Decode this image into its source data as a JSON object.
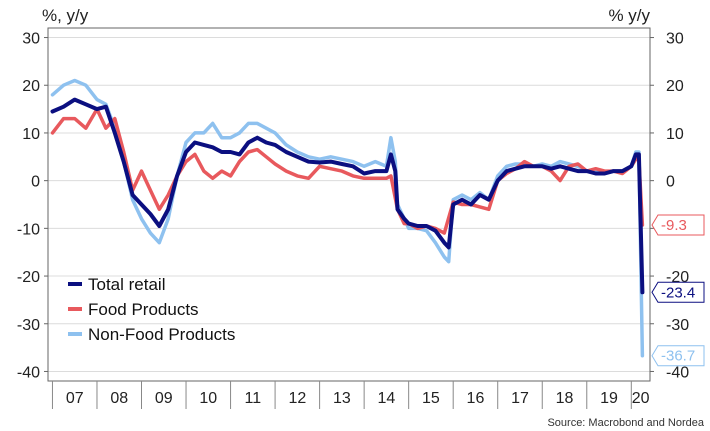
{
  "chart_data": {
    "type": "line",
    "ylabel_left": "%, y/y",
    "ylabel_right": "% y/y",
    "ylim": [
      -42,
      32
    ],
    "yticks": [
      -40,
      -30,
      -20,
      -10,
      0,
      10,
      20,
      30
    ],
    "xlim": [
      2006.9,
      2020.42
    ],
    "x_year_labels": [
      "07",
      "08",
      "09",
      "10",
      "11",
      "12",
      "13",
      "14",
      "15",
      "16",
      "17",
      "18",
      "19",
      "20"
    ],
    "grid": true,
    "legend_position": "bottom-left",
    "source": "Source: Macrobond and Nordea",
    "series": [
      {
        "name": "Total retail",
        "color": "#0b0f80",
        "end_label": "-23.4",
        "x": [
          2007.0,
          2007.25,
          2007.5,
          2007.75,
          2008.0,
          2008.2,
          2008.4,
          2008.6,
          2008.8,
          2009.0,
          2009.2,
          2009.4,
          2009.6,
          2009.8,
          2010.0,
          2010.2,
          2010.4,
          2010.6,
          2010.8,
          2011.0,
          2011.2,
          2011.4,
          2011.6,
          2011.8,
          2012.0,
          2012.25,
          2012.5,
          2012.75,
          2013.0,
          2013.25,
          2013.5,
          2013.75,
          2014.0,
          2014.25,
          2014.5,
          2014.6,
          2014.7,
          2014.75,
          2014.9,
          2015.0,
          2015.2,
          2015.4,
          2015.6,
          2015.8,
          2015.9,
          2016.0,
          2016.2,
          2016.4,
          2016.6,
          2016.8,
          2017.0,
          2017.2,
          2017.4,
          2017.6,
          2017.8,
          2018.0,
          2018.2,
          2018.4,
          2018.6,
          2018.8,
          2019.0,
          2019.2,
          2019.4,
          2019.6,
          2019.8,
          2020.0,
          2020.1,
          2020.17,
          2020.25
        ],
        "y": [
          14.5,
          15.5,
          17,
          16,
          15,
          15.5,
          10,
          4,
          -3,
          -5,
          -7,
          -9.5,
          -6,
          1,
          6,
          8,
          7.5,
          7,
          6,
          6,
          5.5,
          8,
          9,
          8,
          7.5,
          6,
          5,
          4,
          3.8,
          4,
          3.5,
          3,
          1.5,
          2,
          2,
          5.5,
          2,
          -6,
          -8,
          -9,
          -9.5,
          -9.5,
          -10.5,
          -13,
          -14,
          -5,
          -4,
          -5,
          -3,
          -4,
          0,
          2,
          2.5,
          3,
          3,
          3,
          2.5,
          3,
          2.5,
          2,
          2,
          1.5,
          1.5,
          2,
          2,
          3,
          5.5,
          5.5,
          -23.4
        ]
      },
      {
        "name": "Food Products",
        "color": "#e8595d",
        "end_label": "-9.3",
        "x": [
          2007.0,
          2007.25,
          2007.5,
          2007.75,
          2008.0,
          2008.2,
          2008.4,
          2008.6,
          2008.8,
          2009.0,
          2009.2,
          2009.4,
          2009.6,
          2009.8,
          2010.0,
          2010.2,
          2010.4,
          2010.6,
          2010.8,
          2011.0,
          2011.2,
          2011.4,
          2011.6,
          2011.8,
          2012.0,
          2012.25,
          2012.5,
          2012.75,
          2013.0,
          2013.25,
          2013.5,
          2013.75,
          2014.0,
          2014.25,
          2014.5,
          2014.6,
          2014.75,
          2014.9,
          2015.0,
          2015.2,
          2015.4,
          2015.6,
          2015.8,
          2016.0,
          2016.2,
          2016.4,
          2016.6,
          2016.8,
          2017.0,
          2017.2,
          2017.4,
          2017.6,
          2017.8,
          2018.0,
          2018.2,
          2018.4,
          2018.6,
          2018.8,
          2019.0,
          2019.2,
          2019.4,
          2019.6,
          2019.8,
          2020.0,
          2020.1,
          2020.17,
          2020.25
        ],
        "y": [
          10,
          13,
          13,
          11,
          15,
          11,
          13,
          6,
          -2,
          2,
          -2,
          -6,
          -3,
          1,
          4,
          5.5,
          2,
          0.5,
          2,
          1,
          4,
          6,
          6.5,
          5,
          3.5,
          2,
          1,
          0.5,
          3,
          2.5,
          2,
          1,
          0.5,
          0.5,
          0.5,
          1,
          -6,
          -9,
          -9,
          -10,
          -9.5,
          -10,
          -11,
          -4.5,
          -5,
          -5,
          -5.5,
          -6,
          0,
          1.5,
          2.5,
          4,
          3,
          3,
          2,
          0,
          3,
          3.5,
          2,
          2.5,
          2,
          2,
          1.5,
          3,
          4.5,
          4.5,
          -9.3
        ]
      },
      {
        "name": "Non-Food Products",
        "color": "#8ec1ef",
        "end_label": "-36.7",
        "x": [
          2007.0,
          2007.25,
          2007.5,
          2007.75,
          2008.0,
          2008.2,
          2008.4,
          2008.6,
          2008.8,
          2009.0,
          2009.2,
          2009.4,
          2009.6,
          2009.8,
          2010.0,
          2010.2,
          2010.4,
          2010.6,
          2010.8,
          2011.0,
          2011.2,
          2011.4,
          2011.6,
          2011.8,
          2012.0,
          2012.25,
          2012.5,
          2012.75,
          2013.0,
          2013.25,
          2013.5,
          2013.75,
          2014.0,
          2014.25,
          2014.5,
          2014.6,
          2014.7,
          2014.75,
          2014.9,
          2015.0,
          2015.2,
          2015.4,
          2015.6,
          2015.8,
          2015.9,
          2016.0,
          2016.2,
          2016.4,
          2016.6,
          2016.8,
          2017.0,
          2017.2,
          2017.4,
          2017.6,
          2017.8,
          2018.0,
          2018.2,
          2018.4,
          2018.6,
          2018.8,
          2019.0,
          2019.2,
          2019.4,
          2019.6,
          2019.8,
          2020.0,
          2020.1,
          2020.17,
          2020.25
        ],
        "y": [
          18,
          20,
          21,
          20,
          17,
          16,
          11,
          4,
          -4,
          -8,
          -11,
          -13,
          -8,
          1,
          8,
          10,
          10,
          12,
          9,
          9,
          10,
          12,
          12,
          11,
          10,
          7.5,
          6,
          5,
          4.5,
          5,
          4.5,
          4,
          3,
          4,
          3,
          9,
          4,
          -5,
          -8,
          -10,
          -10,
          -10.5,
          -13,
          -16,
          -17,
          -4,
          -3,
          -4,
          -2.5,
          -4,
          1,
          3,
          3.5,
          3.5,
          3,
          3.5,
          3,
          4,
          3.5,
          3,
          2,
          2,
          1.5,
          2,
          2,
          3,
          6,
          6,
          -36.7
        ]
      }
    ]
  }
}
